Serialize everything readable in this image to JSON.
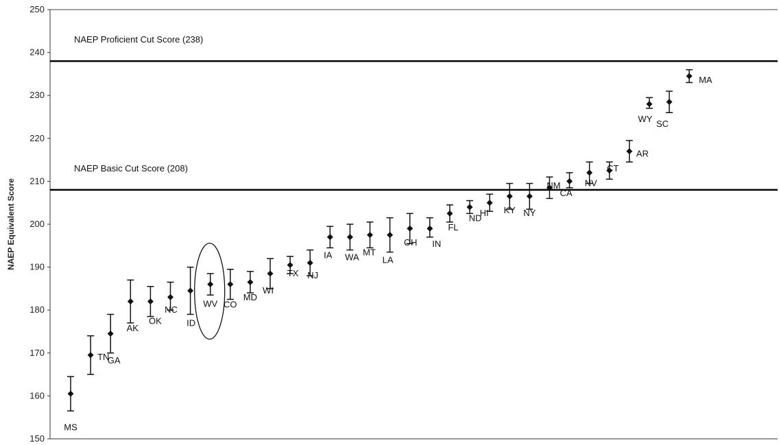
{
  "chart_data": {
    "type": "scatter",
    "ylabel": "NAEP Equivalent Score",
    "ylim": [
      150,
      250
    ],
    "yticks": [
      150,
      160,
      170,
      180,
      190,
      200,
      210,
      220,
      230,
      240,
      250
    ],
    "grid": false,
    "error_bars": true,
    "reference_lines": [
      {
        "value": 238,
        "label": "NAEP Proficient Cut Score (238)"
      },
      {
        "value": 208,
        "label": "NAEP Basic Cut Score (208)"
      }
    ],
    "highlighted_state": "WV",
    "points": [
      {
        "state": "MS",
        "value": 160.5,
        "low": 156.5,
        "high": 164.5
      },
      {
        "state": "TN",
        "value": 169.5,
        "low": 165.0,
        "high": 174.0
      },
      {
        "state": "GA",
        "value": 174.5,
        "low": 170.0,
        "high": 179.0
      },
      {
        "state": "AK",
        "value": 182.0,
        "low": 177.0,
        "high": 187.0
      },
      {
        "state": "OK",
        "value": 182.0,
        "low": 178.5,
        "high": 185.5
      },
      {
        "state": "NC",
        "value": 183.0,
        "low": 180.0,
        "high": 186.5
      },
      {
        "state": "ID",
        "value": 184.5,
        "low": 179.0,
        "high": 190.0
      },
      {
        "state": "WV",
        "value": 186.0,
        "low": 183.5,
        "high": 188.5
      },
      {
        "state": "CO",
        "value": 186.0,
        "low": 182.5,
        "high": 189.5
      },
      {
        "state": "MD",
        "value": 186.5,
        "low": 184.0,
        "high": 189.0
      },
      {
        "state": "WI",
        "value": 188.5,
        "low": 185.0,
        "high": 192.0
      },
      {
        "state": "TX",
        "value": 190.5,
        "low": 188.5,
        "high": 192.5
      },
      {
        "state": "NJ",
        "value": 191.0,
        "low": 188.0,
        "high": 194.0
      },
      {
        "state": "IA",
        "value": 197.0,
        "low": 194.5,
        "high": 199.5
      },
      {
        "state": "WA",
        "value": 197.0,
        "low": 194.0,
        "high": 200.0
      },
      {
        "state": "MT",
        "value": 197.5,
        "low": 194.5,
        "high": 200.5
      },
      {
        "state": "LA",
        "value": 197.5,
        "low": 193.5,
        "high": 201.5
      },
      {
        "state": "OH",
        "value": 199.0,
        "low": 195.5,
        "high": 202.5
      },
      {
        "state": "IN",
        "value": 199.0,
        "low": 197.0,
        "high": 201.5
      },
      {
        "state": "FL",
        "value": 202.5,
        "low": 200.5,
        "high": 204.5
      },
      {
        "state": "ND",
        "value": 204.0,
        "low": 202.5,
        "high": 205.5
      },
      {
        "state": "HI",
        "value": 205.0,
        "low": 203.0,
        "high": 207.0
      },
      {
        "state": "KY",
        "value": 206.5,
        "low": 203.5,
        "high": 209.5
      },
      {
        "state": "NY",
        "value": 206.5,
        "low": 203.5,
        "high": 209.5
      },
      {
        "state": "NM",
        "value": 208.5,
        "low": 206.0,
        "high": 211.0
      },
      {
        "state": "CA",
        "value": 210.0,
        "low": 208.5,
        "high": 212.0
      },
      {
        "state": "NV",
        "value": 212.0,
        "low": 209.5,
        "high": 214.5
      },
      {
        "state": "CT",
        "value": 212.5,
        "low": 210.5,
        "high": 214.5
      },
      {
        "state": "AR",
        "value": 217.0,
        "low": 214.5,
        "high": 219.5
      },
      {
        "state": "WY",
        "value": 228.0,
        "low": 227.0,
        "high": 229.5
      },
      {
        "state": "SC",
        "value": 228.5,
        "low": 226.0,
        "high": 231.0
      },
      {
        "state": "MA",
        "value": 234.5,
        "low": 233.0,
        "high": 236.0
      }
    ]
  }
}
